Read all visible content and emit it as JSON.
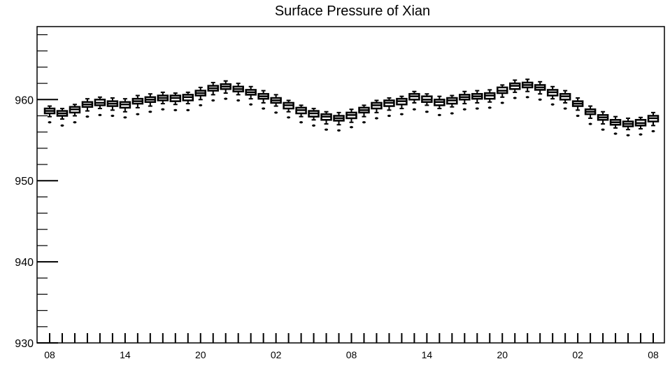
{
  "chart_data": {
    "type": "box",
    "title": "Surface Pressure of Xian",
    "xlabel": "",
    "ylabel": "",
    "ylim": [
      930,
      969
    ],
    "y_ticks": [
      930,
      940,
      950,
      960
    ],
    "x_tick_labels": [
      "08",
      "14",
      "20",
      "02",
      "08",
      "14",
      "20",
      "02",
      "08"
    ],
    "x_tick_positions": [
      0,
      6,
      12,
      18,
      24,
      30,
      36,
      42,
      48
    ],
    "grid": false,
    "colors": {
      "box": "#000000",
      "axis": "#000000",
      "background": "#ffffff"
    },
    "series": [
      {
        "boxes": [
          {
            "x": 0,
            "low": 957.9,
            "q1": 958.3,
            "median": 958.6,
            "q3": 958.9,
            "high": 959.2,
            "outlier": 957.2
          },
          {
            "x": 1,
            "low": 957.6,
            "q1": 958.0,
            "median": 958.3,
            "q3": 958.6,
            "high": 958.9,
            "outlier": 956.8
          },
          {
            "x": 2,
            "low": 958.0,
            "q1": 958.4,
            "median": 958.8,
            "q3": 959.1,
            "high": 959.4,
            "outlier": 957.2
          },
          {
            "x": 3,
            "low": 958.6,
            "q1": 959.1,
            "median": 959.4,
            "q3": 959.7,
            "high": 960.1,
            "outlier": 957.9
          },
          {
            "x": 4,
            "low": 958.9,
            "q1": 959.3,
            "median": 959.6,
            "q3": 960.0,
            "high": 960.3,
            "outlier": 958.1
          },
          {
            "x": 5,
            "low": 958.7,
            "q1": 959.2,
            "median": 959.5,
            "q3": 959.8,
            "high": 960.2,
            "outlier": 958.0
          },
          {
            "x": 6,
            "low": 958.5,
            "q1": 959.0,
            "median": 959.4,
            "q3": 959.7,
            "high": 960.1,
            "outlier": 957.8
          },
          {
            "x": 7,
            "low": 959.0,
            "q1": 959.5,
            "median": 959.8,
            "q3": 960.1,
            "high": 960.5,
            "outlier": 958.2
          },
          {
            "x": 8,
            "low": 959.2,
            "q1": 959.7,
            "median": 960.0,
            "q3": 960.3,
            "high": 960.7,
            "outlier": 958.5
          },
          {
            "x": 9,
            "low": 959.5,
            "q1": 959.9,
            "median": 960.2,
            "q3": 960.5,
            "high": 960.9,
            "outlier": 958.8
          },
          {
            "x": 10,
            "low": 959.4,
            "q1": 959.8,
            "median": 960.2,
            "q3": 960.5,
            "high": 960.8,
            "outlier": 958.7
          },
          {
            "x": 11,
            "low": 959.5,
            "q1": 959.9,
            "median": 960.3,
            "q3": 960.6,
            "high": 960.9,
            "outlier": 958.7
          },
          {
            "x": 12,
            "low": 960.0,
            "q1": 960.5,
            "median": 960.8,
            "q3": 961.1,
            "high": 961.5,
            "outlier": 959.3
          },
          {
            "x": 13,
            "low": 960.6,
            "q1": 961.1,
            "median": 961.4,
            "q3": 961.7,
            "high": 962.1,
            "outlier": 959.9
          },
          {
            "x": 14,
            "low": 960.8,
            "q1": 961.3,
            "median": 961.6,
            "q3": 961.9,
            "high": 962.3,
            "outlier": 960.1
          },
          {
            "x": 15,
            "low": 960.6,
            "q1": 961.0,
            "median": 961.3,
            "q3": 961.6,
            "high": 962.0,
            "outlier": 959.9
          },
          {
            "x": 16,
            "low": 960.1,
            "q1": 960.6,
            "median": 960.9,
            "q3": 961.2,
            "high": 961.6,
            "outlier": 959.4
          },
          {
            "x": 17,
            "low": 959.6,
            "q1": 960.1,
            "median": 960.4,
            "q3": 960.7,
            "high": 961.1,
            "outlier": 958.9
          },
          {
            "x": 18,
            "low": 959.2,
            "q1": 959.6,
            "median": 959.9,
            "q3": 960.2,
            "high": 960.6,
            "outlier": 958.4
          },
          {
            "x": 19,
            "low": 958.5,
            "q1": 958.9,
            "median": 959.3,
            "q3": 959.6,
            "high": 959.9,
            "outlier": 957.8
          },
          {
            "x": 20,
            "low": 957.9,
            "q1": 958.3,
            "median": 958.7,
            "q3": 959.0,
            "high": 959.3,
            "outlier": 957.2
          },
          {
            "x": 21,
            "low": 957.5,
            "q1": 957.9,
            "median": 958.3,
            "q3": 958.6,
            "high": 958.9,
            "outlier": 956.8
          },
          {
            "x": 22,
            "low": 957.0,
            "q1": 957.5,
            "median": 957.9,
            "q3": 958.2,
            "high": 958.5,
            "outlier": 956.3
          },
          {
            "x": 23,
            "low": 956.9,
            "q1": 957.4,
            "median": 957.7,
            "q3": 958.0,
            "high": 958.4,
            "outlier": 956.2
          },
          {
            "x": 24,
            "low": 957.2,
            "q1": 957.7,
            "median": 958.1,
            "q3": 958.4,
            "high": 958.8,
            "outlier": 956.6
          },
          {
            "x": 25,
            "low": 957.9,
            "q1": 958.4,
            "median": 958.7,
            "q3": 959.0,
            "high": 959.3,
            "outlier": 957.2
          },
          {
            "x": 26,
            "low": 958.4,
            "q1": 958.9,
            "median": 959.3,
            "q3": 959.6,
            "high": 959.9,
            "outlier": 957.7
          },
          {
            "x": 27,
            "low": 958.7,
            "q1": 959.2,
            "median": 959.6,
            "q3": 959.9,
            "high": 960.2,
            "outlier": 958.0
          },
          {
            "x": 28,
            "low": 958.9,
            "q1": 959.4,
            "median": 959.8,
            "q3": 960.1,
            "high": 960.4,
            "outlier": 958.2
          },
          {
            "x": 29,
            "low": 959.6,
            "q1": 960.0,
            "median": 960.4,
            "q3": 960.7,
            "high": 961.0,
            "outlier": 958.8
          },
          {
            "x": 30,
            "low": 959.3,
            "q1": 959.7,
            "median": 960.0,
            "q3": 960.4,
            "high": 960.7,
            "outlier": 958.5
          },
          {
            "x": 31,
            "low": 958.9,
            "q1": 959.3,
            "median": 959.7,
            "q3": 960.0,
            "high": 960.4,
            "outlier": 958.1
          },
          {
            "x": 32,
            "low": 959.1,
            "q1": 959.5,
            "median": 959.9,
            "q3": 960.2,
            "high": 960.5,
            "outlier": 958.3
          },
          {
            "x": 33,
            "low": 959.5,
            "q1": 960.0,
            "median": 960.3,
            "q3": 960.6,
            "high": 961.0,
            "outlier": 958.8
          },
          {
            "x": 34,
            "low": 959.6,
            "q1": 960.1,
            "median": 960.4,
            "q3": 960.7,
            "high": 961.1,
            "outlier": 958.9
          },
          {
            "x": 35,
            "low": 959.7,
            "q1": 960.1,
            "median": 960.5,
            "q3": 960.8,
            "high": 961.2,
            "outlier": 959.0
          },
          {
            "x": 36,
            "low": 960.3,
            "q1": 960.8,
            "median": 961.1,
            "q3": 961.5,
            "high": 961.8,
            "outlier": 959.6
          },
          {
            "x": 37,
            "low": 960.9,
            "q1": 961.3,
            "median": 961.7,
            "q3": 962.0,
            "high": 962.4,
            "outlier": 960.2
          },
          {
            "x": 38,
            "low": 961.0,
            "q1": 961.5,
            "median": 961.8,
            "q3": 962.1,
            "high": 962.5,
            "outlier": 960.3
          },
          {
            "x": 39,
            "low": 960.7,
            "q1": 961.2,
            "median": 961.5,
            "q3": 961.8,
            "high": 962.2,
            "outlier": 960.0
          },
          {
            "x": 40,
            "low": 960.1,
            "q1": 960.5,
            "median": 960.9,
            "q3": 961.2,
            "high": 961.6,
            "outlier": 959.4
          },
          {
            "x": 41,
            "low": 959.6,
            "q1": 960.0,
            "median": 960.4,
            "q3": 960.7,
            "high": 961.1,
            "outlier": 958.9
          },
          {
            "x": 42,
            "low": 958.7,
            "q1": 959.2,
            "median": 959.5,
            "q3": 959.8,
            "high": 960.2,
            "outlier": 958.0
          },
          {
            "x": 43,
            "low": 957.7,
            "q1": 958.2,
            "median": 958.5,
            "q3": 958.8,
            "high": 959.2,
            "outlier": 957.0
          },
          {
            "x": 44,
            "low": 957.0,
            "q1": 957.5,
            "median": 957.8,
            "q3": 958.1,
            "high": 958.5,
            "outlier": 956.3
          },
          {
            "x": 45,
            "low": 956.5,
            "q1": 956.9,
            "median": 957.2,
            "q3": 957.5,
            "high": 957.9,
            "outlier": 955.8
          },
          {
            "x": 46,
            "low": 956.3,
            "q1": 956.7,
            "median": 957.0,
            "q3": 957.3,
            "high": 957.7,
            "outlier": 955.6
          },
          {
            "x": 47,
            "low": 956.4,
            "q1": 956.8,
            "median": 957.1,
            "q3": 957.5,
            "high": 957.8,
            "outlier": 955.7
          },
          {
            "x": 48,
            "low": 956.8,
            "q1": 957.3,
            "median": 957.7,
            "q3": 958.0,
            "high": 958.4,
            "outlier": 956.1
          }
        ]
      }
    ]
  }
}
